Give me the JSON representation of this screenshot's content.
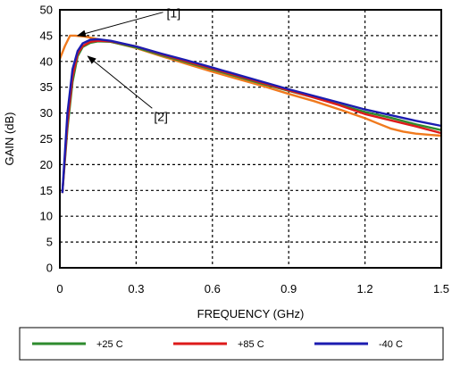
{
  "chart_data": {
    "type": "line",
    "xlabel": "FREQUENCY (GHz)",
    "ylabel": "GAIN (dB)",
    "xlim": [
      0,
      1.5
    ],
    "ylim": [
      0,
      50
    ],
    "xticks": [
      "0",
      "0.3",
      "0.6",
      "0.9",
      "1.2",
      "1.5"
    ],
    "yticks": [
      "0",
      "5",
      "10",
      "15",
      "20",
      "25",
      "30",
      "35",
      "40",
      "45",
      "50"
    ],
    "grid": true,
    "legend": "bottom",
    "series": [
      {
        "name": "+25 C",
        "color": "#2e8b2e",
        "x": [
          0.01,
          0.03,
          0.05,
          0.07,
          0.09,
          0.12,
          0.15,
          0.2,
          0.3,
          0.4,
          0.5,
          0.6,
          0.7,
          0.8,
          0.9,
          1.0,
          1.1,
          1.2,
          1.3,
          1.4,
          1.5
        ],
        "y": [
          14.5,
          27,
          36,
          41,
          42.8,
          43.6,
          43.9,
          43.8,
          42.7,
          41.2,
          39.8,
          38.4,
          37.0,
          35.6,
          34.3,
          33.0,
          31.6,
          30.2,
          29.1,
          27.8,
          26.7
        ]
      },
      {
        "name": "+85 C",
        "color": "#dd1a1a",
        "x": [
          0.01,
          0.03,
          0.05,
          0.07,
          0.09,
          0.12,
          0.15,
          0.2,
          0.3,
          0.4,
          0.5,
          0.6,
          0.7,
          0.8,
          0.9,
          1.0,
          1.1,
          1.2,
          1.3,
          1.4,
          1.5
        ],
        "y": [
          14.5,
          28,
          37,
          41.5,
          43.0,
          43.8,
          44.0,
          43.9,
          42.9,
          41.4,
          40.0,
          38.6,
          37.2,
          35.8,
          34.4,
          33.0,
          31.5,
          29.8,
          28.6,
          27.4,
          26.1
        ]
      },
      {
        "name": "-40 C",
        "color": "#1c1cb0",
        "x": [
          0.01,
          0.03,
          0.05,
          0.07,
          0.09,
          0.12,
          0.15,
          0.2,
          0.3,
          0.4,
          0.5,
          0.6,
          0.7,
          0.8,
          0.9,
          1.0,
          1.1,
          1.2,
          1.3,
          1.4,
          1.5
        ],
        "y": [
          14.5,
          30,
          38.5,
          42,
          43.5,
          44.2,
          44.3,
          44.0,
          42.9,
          41.5,
          40.2,
          38.8,
          37.4,
          36.0,
          34.6,
          33.3,
          32.0,
          30.7,
          29.6,
          28.5,
          27.5
        ]
      },
      {
        "name": "",
        "color": "#f07a1e",
        "x": [
          0.0,
          0.02,
          0.04,
          0.06,
          0.1,
          0.15,
          0.2,
          0.3,
          0.4,
          0.5,
          0.6,
          0.7,
          0.8,
          0.9,
          1.0,
          1.1,
          1.2,
          1.25,
          1.3,
          1.35,
          1.4,
          1.45,
          1.5
        ],
        "y": [
          40.5,
          43,
          45,
          45,
          44.8,
          44.3,
          43.8,
          42.6,
          41.0,
          39.5,
          38.0,
          36.6,
          35.2,
          33.7,
          32.3,
          30.7,
          29.0,
          28.0,
          27.0,
          26.4,
          26.0,
          25.8,
          25.6
        ]
      }
    ],
    "annotations": [
      {
        "label": "[1]",
        "target": [
          0.07,
          45
        ],
        "text_at": [
          0.42,
          48.5
        ]
      },
      {
        "label": "[2]",
        "target": [
          0.11,
          41
        ],
        "text_at": [
          0.37,
          28.5
        ]
      }
    ]
  }
}
